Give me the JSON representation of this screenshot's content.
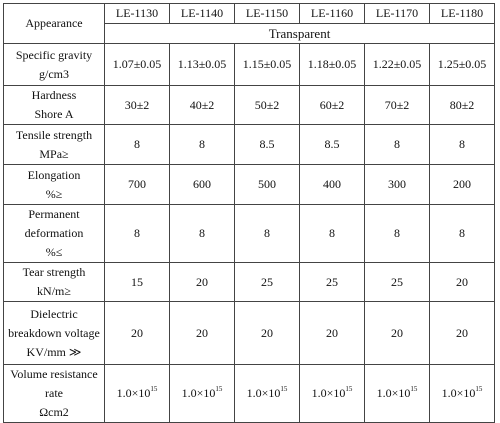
{
  "table": {
    "header": [
      "Appearance",
      "LE-1130",
      "LE-1140",
      "LE-1150",
      "LE-1160",
      "LE-1170",
      "LE-1180"
    ],
    "appearance": "Transparent",
    "rows": [
      {
        "label": [
          "Specific gravity",
          "g/cm3"
        ],
        "values": [
          "1.07±0.05",
          "1.13±0.05",
          "1.15±0.05",
          "1.18±0.05",
          "1.22±0.05",
          "1.25±0.05"
        ]
      },
      {
        "label": [
          "Hardness",
          "Shore A"
        ],
        "values": [
          "30±2",
          "40±2",
          "50±2",
          "60±2",
          "70±2",
          "80±2"
        ]
      },
      {
        "label": [
          "Tensile strength",
          "MPa≥"
        ],
        "values": [
          "8",
          "8",
          "8.5",
          "8.5",
          "8",
          "8"
        ]
      },
      {
        "label": [
          "Elongation",
          "%≥"
        ],
        "values": [
          "700",
          "600",
          "500",
          "400",
          "300",
          "200"
        ]
      },
      {
        "label": [
          "Permanent",
          "deformation",
          "%≤"
        ],
        "values": [
          "8",
          "8",
          "8",
          "8",
          "8",
          "8"
        ]
      },
      {
        "label": [
          "Tear strength",
          "kN/m≥"
        ],
        "values": [
          "15",
          "20",
          "25",
          "25",
          "25",
          "20"
        ]
      },
      {
        "label": [
          "Dielectric",
          "breakdown voltage",
          "KV/mm  ≫"
        ],
        "values": [
          "20",
          "20",
          "20",
          "20",
          "20",
          "20"
        ]
      },
      {
        "label": [
          "Volume resistance",
          "rate",
          "Ωcm2"
        ],
        "values": [
          [
            "1.0×10",
            "15"
          ],
          [
            "1.0×10",
            "15"
          ],
          [
            "1.0×10",
            "15"
          ],
          [
            "1.0×10",
            "15"
          ],
          [
            "1.0×10",
            "15"
          ],
          [
            "1.0×10",
            "15"
          ]
        ]
      }
    ]
  }
}
